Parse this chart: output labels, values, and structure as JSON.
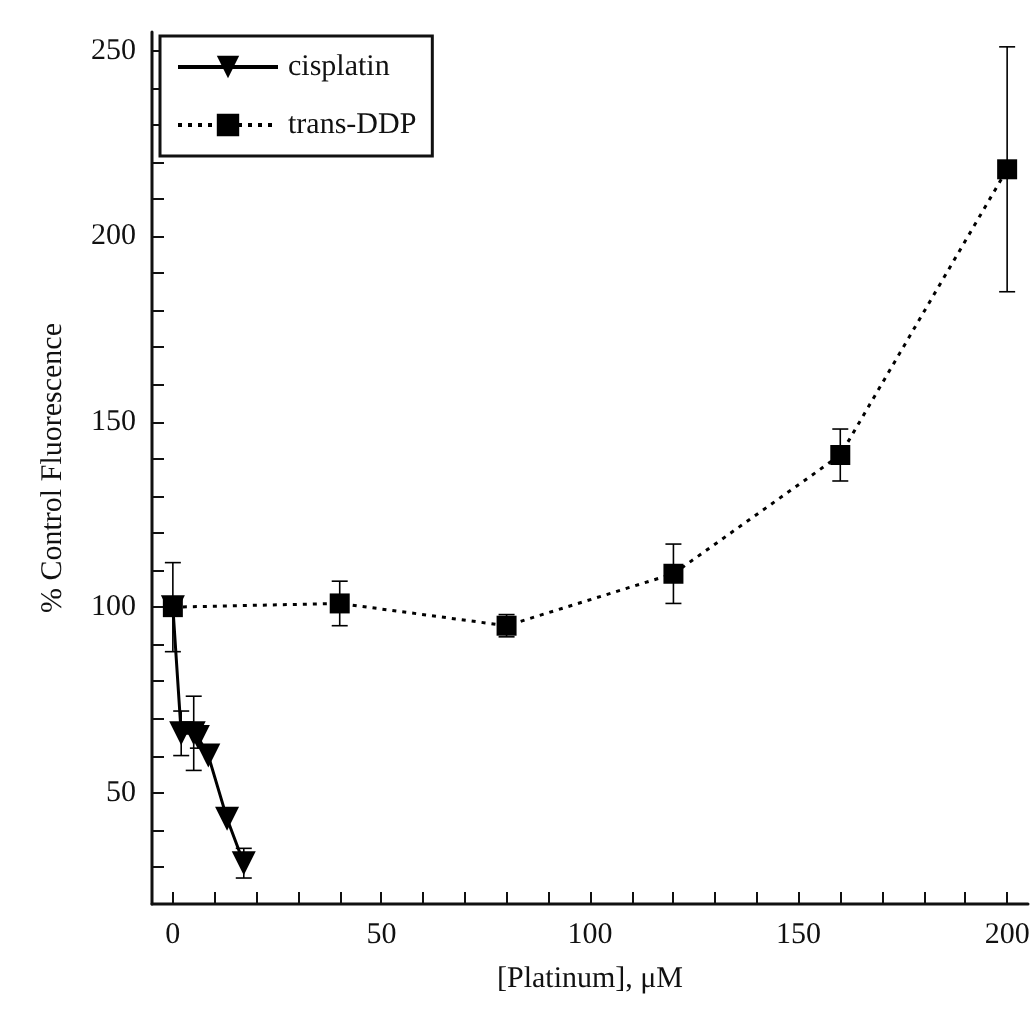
{
  "chart_data": {
    "type": "line",
    "xlabel": "[Platinum], μM",
    "ylabel": "% Control Fluorescence",
    "xlim": [
      -5,
      205
    ],
    "ylim": [
      20,
      255
    ],
    "xticks": [
      0,
      {
        "value": 10,
        "label": null
      },
      {
        "value": 20,
        "label": null
      },
      {
        "value": 30,
        "label": null
      },
      {
        "value": 40,
        "label": null
      },
      50,
      {
        "value": 60,
        "label": null
      },
      {
        "value": 70,
        "label": null
      },
      {
        "value": 80,
        "label": null
      },
      {
        "value": 90,
        "label": null
      },
      100,
      {
        "value": 110,
        "label": null
      },
      {
        "value": 120,
        "label": null
      },
      {
        "value": 130,
        "label": null
      },
      {
        "value": 140,
        "label": null
      },
      150,
      {
        "value": 160,
        "label": null
      },
      {
        "value": 170,
        "label": null
      },
      {
        "value": 180,
        "label": null
      },
      {
        "value": 190,
        "label": null
      },
      200
    ],
    "yticks": [
      {
        "value": 30,
        "label": null
      },
      {
        "value": 40,
        "label": null
      },
      50,
      {
        "value": 60,
        "label": null
      },
      {
        "value": 70,
        "label": null
      },
      {
        "value": 80,
        "label": null
      },
      {
        "value": 90,
        "label": null
      },
      100,
      {
        "value": 110,
        "label": null
      },
      {
        "value": 120,
        "label": null
      },
      {
        "value": 130,
        "label": null
      },
      {
        "value": 140,
        "label": null
      },
      150,
      {
        "value": 160,
        "label": null
      },
      {
        "value": 170,
        "label": null
      },
      {
        "value": 180,
        "label": null
      },
      {
        "value": 190,
        "label": null
      },
      200,
      {
        "value": 210,
        "label": null
      },
      {
        "value": 220,
        "label": null
      },
      {
        "value": 230,
        "label": null
      },
      {
        "value": 240,
        "label": null
      },
      250
    ],
    "grid": false,
    "legend": "top left",
    "series": [
      {
        "name": "cisplatin",
        "color": "#000000",
        "marker": "triangle",
        "line_style": "solid",
        "x": [
          0,
          2,
          5,
          6,
          8.5,
          13,
          17
        ],
        "values": [
          100,
          66,
          66,
          65,
          60,
          43,
          31
        ],
        "errors": [
          null,
          6,
          10,
          3,
          null,
          null,
          4
        ]
      },
      {
        "name": "trans-DDP",
        "color": "#000000",
        "marker": "square",
        "line_style": "dotted",
        "x": [
          0,
          40,
          80,
          120,
          160,
          200
        ],
        "values": [
          100,
          101,
          95,
          109,
          141,
          218
        ],
        "errors": [
          12,
          6,
          3,
          8,
          7,
          33
        ]
      }
    ]
  }
}
